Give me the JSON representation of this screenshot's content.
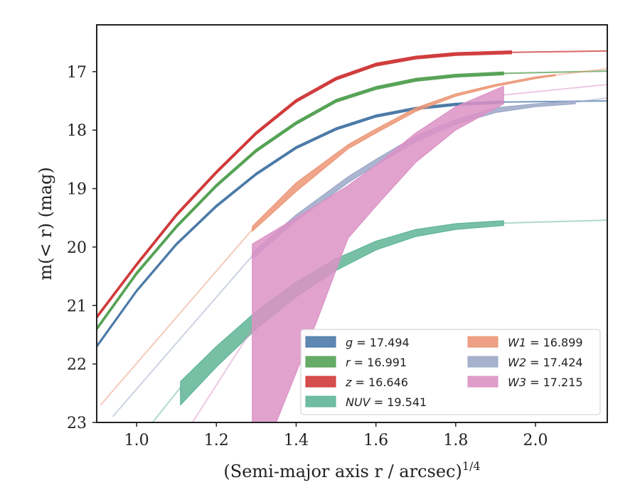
{
  "chart_data": {
    "type": "area",
    "xlabel": "(Semi-major axis r / arcsec)",
    "xlabel_superscript": "1/4",
    "ylabel": "m(< r) (mag)",
    "xlim": [
      0.9,
      2.18
    ],
    "ylim": [
      23.0,
      16.2
    ],
    "y_inverted": true,
    "x_ticks": [
      1.0,
      1.2,
      1.4,
      1.6,
      1.8,
      2.0
    ],
    "x_tick_labels": [
      "1.0",
      "1.2",
      "1.4",
      "1.6",
      "1.8",
      "2.0"
    ],
    "y_ticks": [
      17,
      18,
      19,
      20,
      21,
      22,
      23
    ],
    "y_tick_labels": [
      "17",
      "18",
      "19",
      "20",
      "21",
      "22",
      "23"
    ],
    "grid": false,
    "legend": {
      "placement": "bottom-right",
      "columns": 2
    },
    "series": [
      {
        "name": "g",
        "label": "g = 17.494",
        "color": "#4c7aa8",
        "solid": [
          [
            0.9,
            21.7
          ],
          [
            1.0,
            20.75
          ],
          [
            1.1,
            19.95
          ],
          [
            1.2,
            19.3
          ],
          [
            1.3,
            18.75
          ],
          [
            1.4,
            18.3
          ],
          [
            1.5,
            17.98
          ],
          [
            1.6,
            17.76
          ],
          [
            1.7,
            17.63
          ],
          [
            1.8,
            17.56
          ],
          [
            1.92,
            17.52
          ]
        ],
        "solid_halfwidth": 0.02,
        "faded": [
          [
            1.92,
            17.52
          ],
          [
            2.0,
            17.51
          ],
          [
            2.1,
            17.5
          ],
          [
            2.18,
            17.5
          ]
        ],
        "faded_lower": [
          [
            1.92,
            17.52
          ],
          [
            2.18,
            17.5
          ]
        ],
        "faded_upper": [
          [
            1.92,
            17.52
          ],
          [
            2.18,
            17.5
          ]
        ]
      },
      {
        "name": "r",
        "label": "r = 16.991",
        "color": "#55a255",
        "solid": [
          [
            0.9,
            21.4
          ],
          [
            1.0,
            20.45
          ],
          [
            1.1,
            19.65
          ],
          [
            1.2,
            18.95
          ],
          [
            1.3,
            18.35
          ],
          [
            1.4,
            17.88
          ],
          [
            1.5,
            17.5
          ],
          [
            1.6,
            17.28
          ],
          [
            1.7,
            17.14
          ],
          [
            1.8,
            17.07
          ],
          [
            1.92,
            17.03
          ]
        ],
        "solid_halfwidth": 0.025,
        "faded": [
          [
            1.92,
            17.03
          ],
          [
            2.0,
            17.01
          ],
          [
            2.1,
            16.995
          ],
          [
            2.18,
            16.99
          ]
        ],
        "faded_lower": [
          [
            1.92,
            17.03
          ],
          [
            2.18,
            16.99
          ]
        ],
        "faded_upper": [
          [
            1.92,
            17.03
          ],
          [
            2.18,
            16.99
          ]
        ]
      },
      {
        "name": "z",
        "label": "z = 16.646",
        "color": "#d03a3a",
        "solid": [
          [
            0.9,
            21.2
          ],
          [
            1.0,
            20.3
          ],
          [
            1.1,
            19.45
          ],
          [
            1.2,
            18.72
          ],
          [
            1.3,
            18.05
          ],
          [
            1.4,
            17.5
          ],
          [
            1.5,
            17.12
          ],
          [
            1.6,
            16.88
          ],
          [
            1.7,
            16.76
          ],
          [
            1.8,
            16.7
          ],
          [
            1.94,
            16.67
          ]
        ],
        "solid_halfwidth": 0.025,
        "faded": [
          [
            1.94,
            16.67
          ],
          [
            2.0,
            16.66
          ],
          [
            2.1,
            16.65
          ],
          [
            2.18,
            16.646
          ]
        ],
        "faded_lower": [
          [
            1.94,
            16.67
          ],
          [
            2.18,
            16.646
          ]
        ],
        "faded_upper": [
          [
            1.94,
            16.67
          ],
          [
            2.18,
            16.646
          ]
        ]
      },
      {
        "name": "NUV",
        "label": "NUV = 19.541",
        "color": "#5fb597",
        "solid_lower": [
          [
            1.11,
            22.7
          ],
          [
            1.2,
            22.05
          ],
          [
            1.3,
            21.4
          ],
          [
            1.4,
            20.85
          ],
          [
            1.5,
            20.4
          ],
          [
            1.6,
            20.05
          ],
          [
            1.7,
            19.82
          ],
          [
            1.8,
            19.7
          ],
          [
            1.92,
            19.63
          ]
        ],
        "solid_upper": [
          [
            1.11,
            22.3
          ],
          [
            1.2,
            21.7
          ],
          [
            1.3,
            21.1
          ],
          [
            1.4,
            20.6
          ],
          [
            1.5,
            20.2
          ],
          [
            1.6,
            19.9
          ],
          [
            1.7,
            19.7
          ],
          [
            1.8,
            19.6
          ],
          [
            1.92,
            19.55
          ]
        ],
        "faded": [
          [
            1.04,
            23.0
          ],
          [
            1.08,
            22.6
          ],
          [
            1.11,
            22.4
          ],
          [
            1.92,
            19.59
          ],
          [
            2.0,
            19.57
          ],
          [
            2.1,
            19.55
          ],
          [
            2.18,
            19.54
          ]
        ],
        "faded_lower": [
          [
            1.04,
            23.0
          ],
          [
            1.11,
            22.4
          ]
        ],
        "faded_upper": [
          [
            1.92,
            19.59
          ],
          [
            2.18,
            19.54
          ]
        ]
      },
      {
        "name": "W1",
        "label": "W1 = 16.899",
        "color": "#ec9777",
        "solid_lower": [
          [
            1.29,
            19.73
          ],
          [
            1.4,
            19.05
          ],
          [
            1.53,
            18.32
          ],
          [
            1.6,
            18.05
          ],
          [
            1.7,
            17.68
          ],
          [
            1.8,
            17.42
          ],
          [
            1.9,
            17.25
          ],
          [
            2.0,
            17.12
          ],
          [
            2.05,
            17.07
          ]
        ],
        "solid_upper": [
          [
            1.29,
            19.65
          ],
          [
            1.4,
            18.9
          ],
          [
            1.53,
            18.25
          ],
          [
            1.6,
            17.98
          ],
          [
            1.7,
            17.62
          ],
          [
            1.8,
            17.38
          ],
          [
            1.9,
            17.22
          ],
          [
            2.0,
            17.09
          ],
          [
            2.05,
            17.05
          ]
        ],
        "faded": [
          [
            0.91,
            22.7
          ],
          [
            1.0,
            21.9
          ],
          [
            1.1,
            21.1
          ],
          [
            1.2,
            20.4
          ],
          [
            1.29,
            19.7
          ],
          [
            2.05,
            17.06
          ],
          [
            2.1,
            17.0
          ],
          [
            2.18,
            16.95
          ]
        ],
        "faded_lower": [
          [
            0.91,
            22.7
          ],
          [
            1.29,
            19.7
          ]
        ],
        "faded_upper": [
          [
            2.05,
            17.06
          ],
          [
            2.18,
            16.95
          ]
        ]
      },
      {
        "name": "W2",
        "label": "W2 = 17.424",
        "color": "#9ca8c8",
        "solid_lower": [
          [
            1.29,
            20.2
          ],
          [
            1.4,
            19.55
          ],
          [
            1.53,
            18.9
          ],
          [
            1.6,
            18.6
          ],
          [
            1.7,
            18.2
          ],
          [
            1.8,
            17.9
          ],
          [
            1.9,
            17.7
          ],
          [
            2.0,
            17.6
          ],
          [
            2.1,
            17.55
          ]
        ],
        "solid_upper": [
          [
            1.29,
            20.1
          ],
          [
            1.4,
            19.45
          ],
          [
            1.53,
            18.8
          ],
          [
            1.6,
            18.5
          ],
          [
            1.7,
            18.1
          ],
          [
            1.8,
            17.82
          ],
          [
            1.9,
            17.62
          ],
          [
            2.0,
            17.55
          ],
          [
            2.1,
            17.5
          ]
        ],
        "faded": [
          [
            0.94,
            22.9
          ],
          [
            1.0,
            22.35
          ],
          [
            1.1,
            21.6
          ],
          [
            1.2,
            20.9
          ],
          [
            1.29,
            20.15
          ],
          [
            2.1,
            17.52
          ],
          [
            2.18,
            17.45
          ]
        ],
        "faded_lower": [
          [
            0.94,
            22.9
          ],
          [
            1.29,
            20.15
          ]
        ],
        "faded_upper": [
          [
            2.1,
            17.52
          ],
          [
            2.18,
            17.45
          ]
        ]
      },
      {
        "name": "W3",
        "label": "W3 = 17.215",
        "color": "#dc92c6",
        "solid_lower": [
          [
            1.29,
            23.0
          ],
          [
            1.35,
            23.0
          ],
          [
            1.45,
            21.3
          ],
          [
            1.53,
            19.85
          ],
          [
            1.6,
            19.3
          ],
          [
            1.7,
            18.55
          ],
          [
            1.8,
            18.0
          ],
          [
            1.92,
            17.55
          ]
        ],
        "solid_upper": [
          [
            1.29,
            19.95
          ],
          [
            1.4,
            19.5
          ],
          [
            1.53,
            18.95
          ],
          [
            1.6,
            18.6
          ],
          [
            1.7,
            18.05
          ],
          [
            1.8,
            17.6
          ],
          [
            1.92,
            17.25
          ]
        ],
        "faded": [
          [
            1.14,
            23.0
          ],
          [
            1.2,
            22.3
          ],
          [
            1.25,
            21.8
          ],
          [
            1.29,
            21.4
          ],
          [
            1.92,
            17.4
          ],
          [
            2.0,
            17.3
          ],
          [
            2.1,
            17.25
          ],
          [
            2.18,
            17.22
          ]
        ],
        "faded_lower": [
          [
            1.14,
            23.0
          ],
          [
            1.29,
            21.4
          ]
        ],
        "faded_upper": [
          [
            1.92,
            17.4
          ],
          [
            2.18,
            17.22
          ]
        ]
      }
    ],
    "legend_entries": [
      {
        "prefix": "g",
        "value": "17.494",
        "color": "#4c7aa8"
      },
      {
        "prefix": "r",
        "value": "16.991",
        "color": "#55a255"
      },
      {
        "prefix": "z",
        "value": "16.646",
        "color": "#d03a3a"
      },
      {
        "prefix": "NUV",
        "value": "19.541",
        "color": "#5fb597"
      },
      {
        "prefix": "W1",
        "value": "16.899",
        "color": "#ec9777"
      },
      {
        "prefix": "W2",
        "value": "17.424",
        "color": "#9ca8c8"
      },
      {
        "prefix": "W3",
        "value": "17.215",
        "color": "#dc92c6"
      }
    ]
  }
}
